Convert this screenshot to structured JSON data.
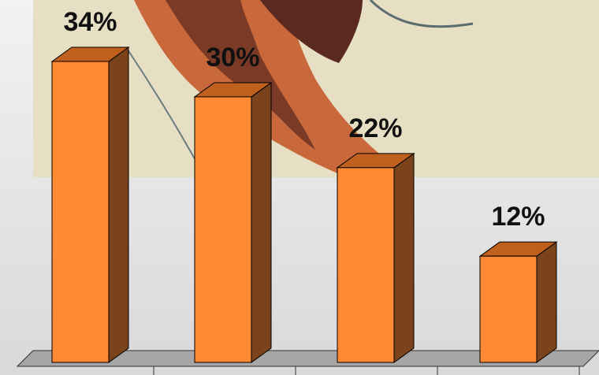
{
  "chart_data": {
    "type": "bar3d",
    "categories": [
      null,
      null,
      null,
      null
    ],
    "values": [
      34,
      30,
      22,
      12
    ],
    "value_labels": [
      "34%",
      "30%",
      "22%",
      "12%"
    ],
    "color": "#ff8a33"
  }
}
